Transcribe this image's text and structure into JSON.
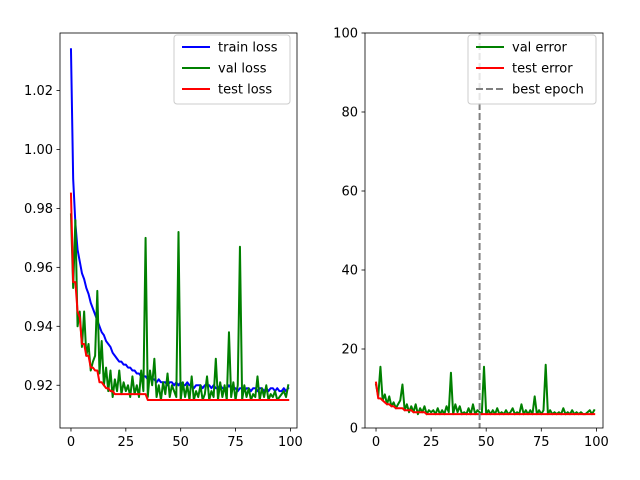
{
  "chart_data": [
    {
      "type": "line",
      "title": "",
      "xlabel": "",
      "ylabel": "",
      "xlim": [
        -5,
        103
      ],
      "ylim": [
        0.9055,
        1.0395
      ],
      "xticks": [
        0,
        25,
        50,
        75,
        100
      ],
      "yticks": [
        0.92,
        0.94,
        0.96,
        0.98,
        1.0,
        1.02
      ],
      "legend_position": "top-right",
      "series": [
        {
          "name": "train loss",
          "color": "#0000ff",
          "style": "solid",
          "x": [
            0,
            1,
            2,
            3,
            4,
            5,
            6,
            7,
            8,
            9,
            10,
            11,
            12,
            13,
            14,
            15,
            16,
            17,
            18,
            19,
            20,
            21,
            22,
            23,
            24,
            25,
            26,
            27,
            28,
            29,
            30,
            31,
            32,
            33,
            34,
            35,
            36,
            37,
            38,
            39,
            40,
            41,
            42,
            43,
            44,
            45,
            46,
            47,
            48,
            49,
            50,
            51,
            52,
            53,
            54,
            55,
            56,
            57,
            58,
            59,
            60,
            61,
            62,
            63,
            64,
            65,
            66,
            67,
            68,
            69,
            70,
            71,
            72,
            73,
            74,
            75,
            76,
            77,
            78,
            79,
            80,
            81,
            82,
            83,
            84,
            85,
            86,
            87,
            88,
            89,
            90,
            91,
            92,
            93,
            94,
            95,
            96,
            97,
            98,
            99
          ],
          "values": [
            1.034,
            0.99,
            0.975,
            0.966,
            0.962,
            0.958,
            0.956,
            0.953,
            0.951,
            0.948,
            0.946,
            0.944,
            0.942,
            0.94,
            0.938,
            0.937,
            0.935,
            0.934,
            0.933,
            0.931,
            0.93,
            0.929,
            0.928,
            0.928,
            0.927,
            0.927,
            0.926,
            0.926,
            0.925,
            0.925,
            0.924,
            0.924,
            0.923,
            0.923,
            0.923,
            0.922,
            0.923,
            0.922,
            0.922,
            0.921,
            0.922,
            0.921,
            0.921,
            0.921,
            0.92,
            0.921,
            0.921,
            0.92,
            0.921,
            0.92,
            0.921,
            0.92,
            0.92,
            0.921,
            0.92,
            0.92,
            0.919,
            0.92,
            0.92,
            0.92,
            0.919,
            0.92,
            0.92,
            0.92,
            0.919,
            0.92,
            0.919,
            0.919,
            0.92,
            0.919,
            0.919,
            0.919,
            0.92,
            0.919,
            0.919,
            0.919,
            0.918,
            0.919,
            0.919,
            0.918,
            0.919,
            0.919,
            0.918,
            0.919,
            0.919,
            0.918,
            0.919,
            0.919,
            0.918,
            0.919,
            0.918,
            0.919,
            0.919,
            0.918,
            0.919,
            0.918,
            0.918,
            0.919,
            0.918,
            0.919
          ]
        },
        {
          "name": "val loss",
          "color": "#008000",
          "style": "solid",
          "x": [
            0,
            1,
            2,
            3,
            4,
            5,
            6,
            7,
            8,
            9,
            10,
            11,
            12,
            13,
            14,
            15,
            16,
            17,
            18,
            19,
            20,
            21,
            22,
            23,
            24,
            25,
            26,
            27,
            28,
            29,
            30,
            31,
            32,
            33,
            34,
            35,
            36,
            37,
            38,
            39,
            40,
            41,
            42,
            43,
            44,
            45,
            46,
            47,
            48,
            49,
            50,
            51,
            52,
            53,
            54,
            55,
            56,
            57,
            58,
            59,
            60,
            61,
            62,
            63,
            64,
            65,
            66,
            67,
            68,
            69,
            70,
            71,
            72,
            73,
            74,
            75,
            76,
            77,
            78,
            79,
            80,
            81,
            82,
            83,
            84,
            85,
            86,
            87,
            88,
            89,
            90,
            91,
            92,
            93,
            94,
            95,
            96,
            97,
            98,
            99
          ],
          "values": [
            0.978,
            0.953,
            0.976,
            0.94,
            0.945,
            0.933,
            0.945,
            0.93,
            0.934,
            0.925,
            0.928,
            0.93,
            0.952,
            0.924,
            0.935,
            0.92,
            0.926,
            0.918,
            0.925,
            0.916,
            0.922,
            0.918,
            0.925,
            0.917,
            0.921,
            0.918,
            0.92,
            0.916,
            0.923,
            0.917,
            0.92,
            0.916,
            0.925,
            0.918,
            0.97,
            0.916,
            0.925,
            0.92,
            0.929,
            0.916,
            0.92,
            0.915,
            0.921,
            0.917,
            0.924,
            0.916,
            0.92,
            0.918,
            0.916,
            0.972,
            0.915,
            0.921,
            0.916,
            0.92,
            0.915,
            0.923,
            0.915,
            0.918,
            0.916,
            0.92,
            0.915,
            0.917,
            0.923,
            0.915,
            0.918,
            0.916,
            0.929,
            0.915,
            0.921,
            0.916,
            0.92,
            0.915,
            0.938,
            0.916,
            0.921,
            0.915,
            0.92,
            0.967,
            0.915,
            0.92,
            0.916,
            0.919,
            0.915,
            0.917,
            0.916,
            0.923,
            0.915,
            0.919,
            0.916,
            0.92,
            0.915,
            0.917,
            0.916,
            0.918,
            0.915,
            0.916,
            0.917,
            0.918,
            0.916,
            0.92
          ]
        },
        {
          "name": "test loss",
          "color": "#ff0000",
          "style": "solid",
          "x": [
            0,
            1,
            2,
            3,
            4,
            5,
            6,
            7,
            8,
            9,
            10,
            11,
            12,
            13,
            14,
            15,
            16,
            17,
            18,
            19,
            20,
            21,
            22,
            23,
            24,
            25,
            26,
            27,
            28,
            29,
            30,
            31,
            32,
            33,
            34,
            35,
            36,
            37,
            38,
            39,
            40,
            41,
            42,
            43,
            44,
            45,
            46,
            47,
            48,
            49,
            50,
            51,
            52,
            53,
            54,
            55,
            56,
            57,
            58,
            59,
            60,
            61,
            62,
            63,
            64,
            65,
            66,
            67,
            68,
            69,
            70,
            71,
            72,
            73,
            74,
            75,
            76,
            77,
            78,
            79,
            80,
            81,
            82,
            83,
            84,
            85,
            86,
            87,
            88,
            89,
            90,
            91,
            92,
            93,
            94,
            95,
            96,
            97,
            98,
            99
          ],
          "values": [
            0.985,
            0.955,
            0.955,
            0.945,
            0.943,
            0.934,
            0.934,
            0.93,
            0.93,
            0.926,
            0.926,
            0.925,
            0.925,
            0.921,
            0.921,
            0.92,
            0.919,
            0.919,
            0.918,
            0.918,
            0.917,
            0.917,
            0.917,
            0.917,
            0.917,
            0.917,
            0.917,
            0.917,
            0.917,
            0.917,
            0.917,
            0.917,
            0.917,
            0.917,
            0.917,
            0.915,
            0.915,
            0.915,
            0.915,
            0.915,
            0.915,
            0.915,
            0.915,
            0.915,
            0.915,
            0.915,
            0.915,
            0.915,
            0.915,
            0.915,
            0.915,
            0.915,
            0.915,
            0.915,
            0.915,
            0.915,
            0.915,
            0.915,
            0.915,
            0.915,
            0.915,
            0.915,
            0.915,
            0.915,
            0.915,
            0.915,
            0.915,
            0.915,
            0.915,
            0.915,
            0.915,
            0.915,
            0.915,
            0.915,
            0.915,
            0.915,
            0.915,
            0.915,
            0.915,
            0.915,
            0.915,
            0.915,
            0.915,
            0.915,
            0.915,
            0.915,
            0.915,
            0.915,
            0.915,
            0.915,
            0.915,
            0.915,
            0.915,
            0.915,
            0.915,
            0.915,
            0.915,
            0.915,
            0.915,
            0.915
          ]
        }
      ]
    },
    {
      "type": "line",
      "title": "",
      "xlabel": "",
      "ylabel": "",
      "xlim": [
        -5,
        103
      ],
      "ylim": [
        0,
        100
      ],
      "xticks": [
        0,
        25,
        50,
        75,
        100
      ],
      "yticks": [
        0,
        20,
        40,
        60,
        80,
        100
      ],
      "legend_position": "top-right",
      "series": [
        {
          "name": "val error",
          "color": "#008000",
          "style": "solid",
          "x": [
            0,
            1,
            2,
            3,
            4,
            5,
            6,
            7,
            8,
            9,
            10,
            11,
            12,
            13,
            14,
            15,
            16,
            17,
            18,
            19,
            20,
            21,
            22,
            23,
            24,
            25,
            26,
            27,
            28,
            29,
            30,
            31,
            32,
            33,
            34,
            35,
            36,
            37,
            38,
            39,
            40,
            41,
            42,
            43,
            44,
            45,
            46,
            47,
            48,
            49,
            50,
            51,
            52,
            53,
            54,
            55,
            56,
            57,
            58,
            59,
            60,
            61,
            62,
            63,
            64,
            65,
            66,
            67,
            68,
            69,
            70,
            71,
            72,
            73,
            74,
            75,
            76,
            77,
            78,
            79,
            80,
            81,
            82,
            83,
            84,
            85,
            86,
            87,
            88,
            89,
            90,
            91,
            92,
            93,
            94,
            95,
            96,
            97,
            98,
            99
          ],
          "values": [
            11,
            8,
            15.5,
            7,
            8.5,
            6,
            8,
            5.5,
            6.5,
            5,
            6,
            7,
            11,
            4.5,
            6,
            4,
            5.5,
            4,
            6,
            3.5,
            5,
            4,
            5.5,
            3.5,
            4.5,
            4,
            4.5,
            3.5,
            5,
            3.5,
            4.5,
            3.5,
            5.5,
            4,
            14,
            3.5,
            6,
            4,
            5.5,
            3.5,
            4,
            3.5,
            5,
            3.5,
            6,
            3.5,
            4.5,
            4,
            3.5,
            15.5,
            3.5,
            4.5,
            3.5,
            4.5,
            3.5,
            5,
            3.5,
            4,
            3.5,
            4.5,
            3.5,
            4,
            5,
            3.5,
            4,
            3.5,
            6,
            3.5,
            4.5,
            3.5,
            4.5,
            3.5,
            8,
            3.5,
            4.5,
            3.5,
            4.5,
            16,
            3.5,
            4.5,
            3.5,
            4,
            3.5,
            4,
            3.5,
            5,
            3.5,
            4,
            3.5,
            4.5,
            3.5,
            4,
            3.5,
            4,
            3.5,
            3.5,
            4,
            4.5,
            3.5,
            4.5
          ]
        },
        {
          "name": "test error",
          "color": "#ff0000",
          "style": "solid",
          "x": [
            0,
            1,
            2,
            3,
            4,
            5,
            6,
            7,
            8,
            9,
            10,
            11,
            12,
            13,
            14,
            15,
            16,
            17,
            18,
            19,
            20,
            21,
            22,
            23,
            24,
            25,
            26,
            27,
            28,
            29,
            30,
            31,
            32,
            33,
            34,
            35,
            36,
            37,
            38,
            39,
            40,
            41,
            42,
            43,
            44,
            45,
            46,
            47,
            48,
            49,
            50,
            51,
            52,
            53,
            54,
            55,
            56,
            57,
            58,
            59,
            60,
            61,
            62,
            63,
            64,
            65,
            66,
            67,
            68,
            69,
            70,
            71,
            72,
            73,
            74,
            75,
            76,
            77,
            78,
            79,
            80,
            81,
            82,
            83,
            84,
            85,
            86,
            87,
            88,
            89,
            90,
            91,
            92,
            93,
            94,
            95,
            96,
            97,
            98,
            99
          ],
          "values": [
            11.5,
            7.5,
            7.5,
            7,
            6.5,
            6,
            6,
            5.5,
            5.5,
            5,
            5,
            5,
            5,
            4.5,
            4.5,
            4.5,
            4.5,
            4,
            4,
            4,
            4,
            4,
            4,
            3.5,
            3.5,
            3.5,
            3.5,
            3.5,
            3.5,
            3.5,
            3.5,
            3.5,
            3.5,
            3.5,
            3.5,
            3.5,
            3.5,
            3.5,
            3.5,
            3.5,
            3.5,
            3.5,
            3.5,
            3.5,
            3.5,
            3.5,
            3.5,
            3.5,
            3.5,
            3.5,
            3.5,
            3.5,
            3.5,
            3.5,
            3.5,
            3.5,
            3.5,
            3.5,
            3.5,
            3.5,
            3.5,
            3.5,
            3.5,
            3.5,
            3.5,
            3.5,
            3.5,
            3.5,
            3.5,
            3.5,
            3.5,
            3.5,
            3.5,
            3.5,
            3.5,
            3.5,
            3.5,
            3.5,
            3.5,
            3.5,
            3.5,
            3.5,
            3.5,
            3.5,
            3.5,
            3.5,
            3.5,
            3.5,
            3.5,
            3.5,
            3.5,
            3.5,
            3.5,
            3.5,
            3.5,
            3.5,
            3.5,
            3.5,
            3.5,
            3.5
          ]
        }
      ],
      "vlines": [
        {
          "name": "best epoch",
          "x": 47,
          "color": "#808080",
          "style": "dashed"
        }
      ]
    }
  ]
}
